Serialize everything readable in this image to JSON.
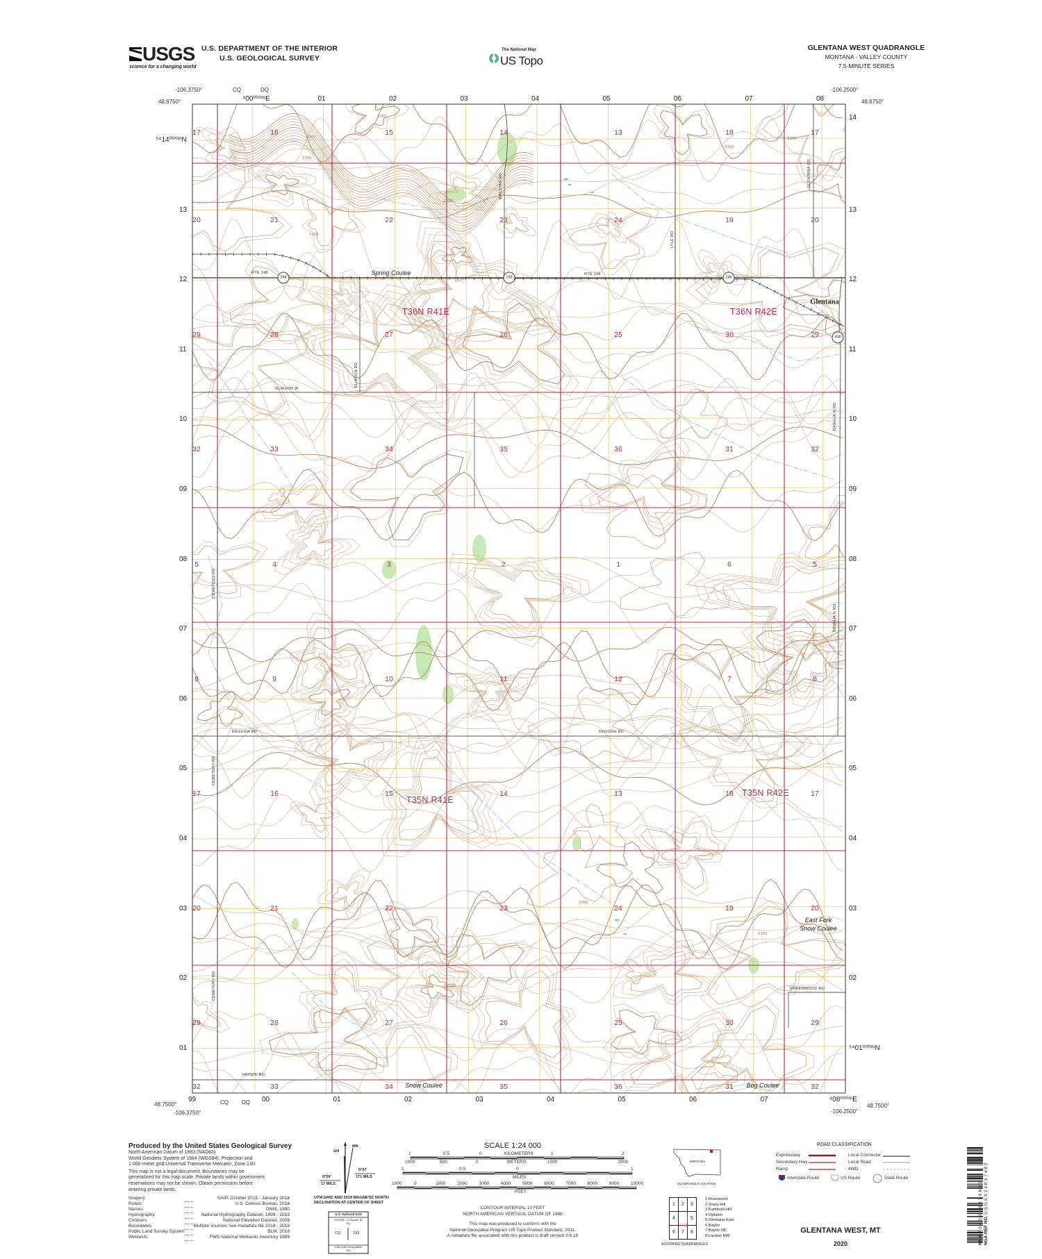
{
  "header": {
    "usgs_logo": "USGS",
    "usgs_tagline": "science for a changing world",
    "agency_line1": "U.S. DEPARTMENT OF THE INTERIOR",
    "agency_line2": "U.S. GEOLOGICAL SURVEY",
    "national_map": "The National Map",
    "us_topo": "US Topo",
    "quad_title": "GLENTANA WEST QUADRANGLE",
    "state_county": "MONTANA - VALLEY COUNTY",
    "series": "7.5-MINUTE SERIES"
  },
  "map": {
    "colors": {
      "section_line": "#b02d4a",
      "utm_grid": "#f0c97a",
      "contour": "#d2ae89",
      "index_contour": "#b58358",
      "water": "#8cc3e6",
      "vegetation": "#b9e3a3",
      "road": "#555555"
    },
    "corners": {
      "nw_lon": "-106.3750°",
      "nw_lat": "48.8750°",
      "ne_lon": "-106.2500°",
      "ne_lat": "48.8750°",
      "sw_lon": "-106.3750°",
      "sw_lat": "48.7500°",
      "se_lon": "-106.2500°",
      "se_lat": "48.7500°"
    },
    "grid_zone_top": [
      "CQ",
      "DQ"
    ],
    "grid_zone_bottom": [
      "CQ",
      "DQ"
    ],
    "easting_top": [
      "⁴00⁰⁰⁰ᵐE",
      "01",
      "02",
      "03",
      "04",
      "05",
      "06",
      "07",
      "08"
    ],
    "easting_bottom": [
      "99",
      "00",
      "01",
      "02",
      "03",
      "04",
      "05",
      "06",
      "07",
      "⁴08⁰⁰⁰ᵐE"
    ],
    "northing_left": [
      "⁵⁴14⁰⁰⁰ᵐN",
      "13",
      "12",
      "11",
      "10",
      "09",
      "08",
      "07",
      "06",
      "05",
      "04",
      "03",
      "02",
      "01"
    ],
    "northing_right": [
      "14",
      "13",
      "12",
      "11",
      "10",
      "09",
      "08",
      "07",
      "06",
      "05",
      "04",
      "03",
      "02",
      "⁵⁴01⁰⁰⁰ᵐN"
    ],
    "sections": [
      [
        "17",
        "16",
        "15",
        "14",
        "13",
        "18",
        "17"
      ],
      [
        "20",
        "21",
        "22",
        "23",
        "24",
        "19",
        "20"
      ],
      [
        "29",
        "28",
        "27",
        "26",
        "25",
        "30",
        "29"
      ],
      [
        "32",
        "33",
        "34",
        "35",
        "36",
        "31",
        "32"
      ],
      [
        "5",
        "4",
        "3",
        "2",
        "1",
        "6",
        "5"
      ],
      [
        "8",
        "9",
        "10",
        "11",
        "12",
        "7",
        "8"
      ],
      [
        "17",
        "16",
        "15",
        "14",
        "13",
        "18",
        "17"
      ],
      [
        "20",
        "21",
        "22",
        "23",
        "24",
        "19",
        "20"
      ],
      [
        "29",
        "28",
        "27",
        "26",
        "25",
        "30",
        "29"
      ],
      [
        "32",
        "33",
        "34",
        "35",
        "36",
        "31",
        "32"
      ]
    ],
    "townships": [
      "T36N R41E",
      "T36N R42E",
      "T35N R41E",
      "T35N R42E"
    ],
    "town": "Glentana",
    "places": [
      "Spring Coulee",
      "Snow Coulee",
      "Bog Coulee",
      "East Fork",
      "Snow Coulee"
    ],
    "roads": {
      "rte248": "RTE 248",
      "walstad": "WALSTAD RD",
      "lyle": "LYLE RD",
      "glentana": "GLENTANA RD",
      "eliason_w": "ELIASON W",
      "eliason_rd": "ELIASON RD",
      "cemetery": "CEMETERY RD",
      "keough": "KEOUGH RD",
      "nashua": "NASHUA N RD",
      "greenwood": "GREENWOOD RD",
      "heinze": "HEINZE RD"
    },
    "route_shields": [
      "248",
      "248",
      "248",
      "438"
    ],
    "contour_labels": [
      "2200",
      "2150",
      "2150",
      "2200",
      "2150",
      "2100",
      "2150",
      "2150",
      "2100",
      "2150"
    ]
  },
  "footer": {
    "produced_by": "Produced by the United States Geological Survey",
    "datum_lines": [
      "North American Datum of 1983 (NAD83)",
      "World Geodetic System of 1984 (WGS84). Projection and",
      "1 000-meter grid:Universal Transverse Mercator, Zone 13U"
    ],
    "disclaimer": [
      "This map is not a legal document. Boundaries may be",
      "generalized for this map scale. Private lands within government",
      "reservations may not be shown. Obtain permission before",
      "entering private lands."
    ],
    "credits": [
      {
        "item": "Imagery",
        "source": "NAIP, October 2015 - January 2016"
      },
      {
        "item": "Roads",
        "source": "U.S. Census Bureau, 2016"
      },
      {
        "item": "Names",
        "source": "GNIS, 1980"
      },
      {
        "item": "Hydrography",
        "source": "National Hydrography Dataset, 1899 - 2019"
      },
      {
        "item": "Contours",
        "source": "National Elevation Dataset, 2008"
      },
      {
        "item": "Boundaries",
        "source": "Multiple sources; see metadata file 2018 - 2019"
      },
      {
        "item": "Public Land Survey System",
        "source": "BLM, 2018"
      },
      {
        "item": "Wetlands",
        "source": "FWS National Wetlands Inventory 1985"
      }
    ],
    "declination": {
      "gn": "GN",
      "mn": "MN",
      "gn_angle": "0°59´",
      "gn_mils": "17 MILS",
      "mn_angle": "9°37´",
      "mn_mils": "171 MILS",
      "caption1": "UTM GRID AND 2019 MAGNETIC NORTH",
      "caption2": "DECLINATION AT CENTER OF SHEET"
    },
    "national_grid": {
      "title": "U.S. National Grid",
      "subtitle": "100,000 - m Square ID",
      "square_id": "DQ",
      "left": "CQ",
      "right": "DQ",
      "zone_label": "Grid Zone Designation",
      "zone": "13U"
    },
    "scale": {
      "title": "SCALE 1:24 000",
      "km_ticks": [
        "1",
        "0.5",
        "0",
        "1",
        "2"
      ],
      "km_label": "KILOMETERS",
      "m_ticks": [
        "1000",
        "500",
        "0",
        "1000",
        "2000"
      ],
      "m_label": "METERS",
      "mi_ticks": [
        "1",
        "0.5",
        "0",
        "1"
      ],
      "mi_label": "MILES",
      "ft_ticks": [
        "1000",
        "0",
        "1000",
        "2000",
        "3000",
        "4000",
        "5000",
        "6000",
        "7000",
        "8000",
        "9000",
        "10000"
      ],
      "ft_label": "FEET"
    },
    "contour_interval": "CONTOUR INTERVAL 10 FEET",
    "vertical_datum": "NORTH AMERICAN VERTICAL DATUM OF 1988",
    "conform": [
      "This map was produced to conform with the",
      "National Geospatial Program US Topo Product Standard, 2011.",
      "A metadata file associated with this product is draft version 0.6.18"
    ],
    "location": {
      "state": "MONTANA",
      "caption": "QUADRANGLE LOCATION"
    },
    "adjoining": {
      "cells": [
        "1",
        "2",
        "3",
        "4",
        "",
        "5",
        "6",
        "7",
        "8"
      ],
      "names": [
        "1 Roanwood",
        "2 Glass Hill",
        "3 Kaminski Hill",
        "4 Opheim",
        "5 Glentana East",
        "6 Baylor",
        "7 Baylor NE",
        "8 Larslan NW"
      ],
      "caption": "ADJOINING QUADRANGLES"
    },
    "road_classification": {
      "title": "ROAD CLASSIFICATION",
      "left": [
        "Expressway",
        "Secondary Hwy",
        "Ramp"
      ],
      "right": [
        "Local Connector",
        "Local Road",
        "4WD"
      ],
      "shields": [
        "Interstate Route",
        "US Route",
        "State Route"
      ]
    },
    "quad_name": "GLENTANA WEST, MT",
    "year": "2020",
    "barcode": {
      "nsn_label": "NSN.",
      "nsn": "7643016376632",
      "nga_label": "NGA REF NO.",
      "nga": "USGSX24K17482"
    }
  }
}
